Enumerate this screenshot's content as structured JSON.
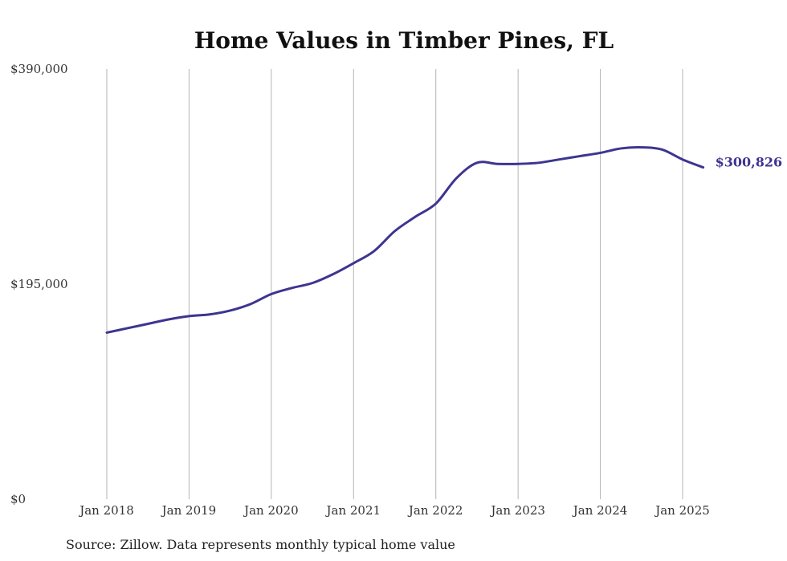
{
  "chart_data": {
    "type": "line",
    "title": "Home Values in Timber Pines, FL",
    "xlabel": "",
    "ylabel": "",
    "x_ticks": [
      "Jan 2018",
      "Jan 2019",
      "Jan 2020",
      "Jan 2021",
      "Jan 2022",
      "Jan 2023",
      "Jan 2024",
      "Jan 2025"
    ],
    "y_ticks": [
      "$0",
      "$195,000",
      "$390,000"
    ],
    "y_tick_values": [
      0,
      195000,
      390000
    ],
    "ylim": [
      0,
      390000
    ],
    "xlim": [
      "2018-01",
      "2025-04"
    ],
    "grid": "vertical",
    "line_color": "#3d3590",
    "series": [
      {
        "x": [
          "2018-01",
          "2018-04",
          "2018-07",
          "2018-10",
          "2019-01",
          "2019-04",
          "2019-07",
          "2019-10",
          "2020-01",
          "2020-04",
          "2020-07",
          "2020-10",
          "2021-01",
          "2021-04",
          "2021-07",
          "2021-10",
          "2022-01",
          "2022-04",
          "2022-07",
          "2022-10",
          "2023-01",
          "2023-04",
          "2023-07",
          "2023-10",
          "2024-01",
          "2024-04",
          "2024-07",
          "2024-10",
          "2025-01",
          "2025-04"
        ],
        "values": [
          151000,
          155000,
          159000,
          163000,
          166000,
          167500,
          171000,
          177000,
          186000,
          191500,
          196000,
          204000,
          214000,
          225000,
          243000,
          256000,
          268000,
          291000,
          305000,
          304000,
          304000,
          305000,
          308000,
          311000,
          314000,
          318000,
          319000,
          317000,
          308000,
          300826
        ],
        "end_label": "$300,826"
      }
    ],
    "source": "Source: Zillow. Data represents monthly typical home value"
  }
}
